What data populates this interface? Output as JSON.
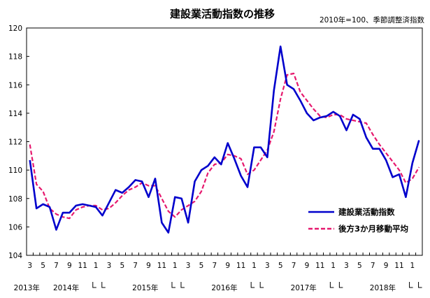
{
  "chart_data": {
    "type": "line",
    "title": "建設業活動指数の推移",
    "subtitle": "2010年=100、季節調整済指数",
    "ylim": [
      104,
      120
    ],
    "yticks": [
      104,
      106,
      108,
      110,
      112,
      114,
      116,
      118,
      120
    ],
    "x_month_labels": [
      "3",
      "5",
      "7",
      "9",
      "11",
      "1",
      "3",
      "5",
      "7",
      "9",
      "11",
      "1",
      "3",
      "5",
      "7",
      "9",
      "11",
      "1",
      "3",
      "5",
      "7",
      "9",
      "11",
      "1",
      "3",
      "5",
      "7",
      "9",
      "11",
      "1"
    ],
    "year_labels": [
      "2013年",
      "2014年",
      "2015年",
      "2016年",
      "2017年",
      "2018年"
    ],
    "legend_position": "bottom-right",
    "grid": false,
    "series": [
      {
        "name": "建設業活動指数",
        "color": "#0000cc",
        "style": "solid",
        "values": [
          110.7,
          107.3,
          107.6,
          107.4,
          105.8,
          107.0,
          107.0,
          107.5,
          107.6,
          107.5,
          107.4,
          106.8,
          107.7,
          108.6,
          108.4,
          108.8,
          109.3,
          109.2,
          108.1,
          109.4,
          106.3,
          105.6,
          108.1,
          108.0,
          106.3,
          109.2,
          110.0,
          110.3,
          110.9,
          110.4,
          111.9,
          110.8,
          109.6,
          108.8,
          111.6,
          111.6,
          110.9,
          115.6,
          118.7,
          116.0,
          115.7,
          114.9,
          114.0,
          113.5,
          113.7,
          113.8,
          114.1,
          113.8,
          112.8,
          113.9,
          113.6,
          112.3,
          111.5,
          111.5,
          110.7,
          109.5,
          109.7,
          108.1,
          110.5,
          112.1
        ]
      },
      {
        "name": "後方3か月移動平均",
        "color": "#e6196e",
        "style": "dashed",
        "values": [
          111.8,
          109.0,
          108.5,
          107.3,
          106.9,
          106.7,
          106.6,
          107.2,
          107.4,
          107.5,
          107.5,
          107.2,
          107.3,
          107.7,
          108.2,
          108.6,
          108.8,
          109.1,
          108.9,
          108.9,
          108.0,
          107.1,
          106.7,
          107.2,
          107.5,
          107.8,
          108.5,
          109.8,
          110.4,
          110.5,
          111.1,
          111.0,
          110.8,
          109.7,
          110.0,
          110.7,
          111.4,
          112.7,
          115.0,
          116.7,
          116.8,
          115.5,
          114.9,
          114.3,
          113.8,
          113.7,
          113.9,
          113.9,
          113.6,
          113.5,
          113.4,
          113.3,
          112.5,
          111.8,
          111.2,
          110.6,
          110.0,
          109.1,
          109.4,
          110.2
        ]
      }
    ]
  }
}
